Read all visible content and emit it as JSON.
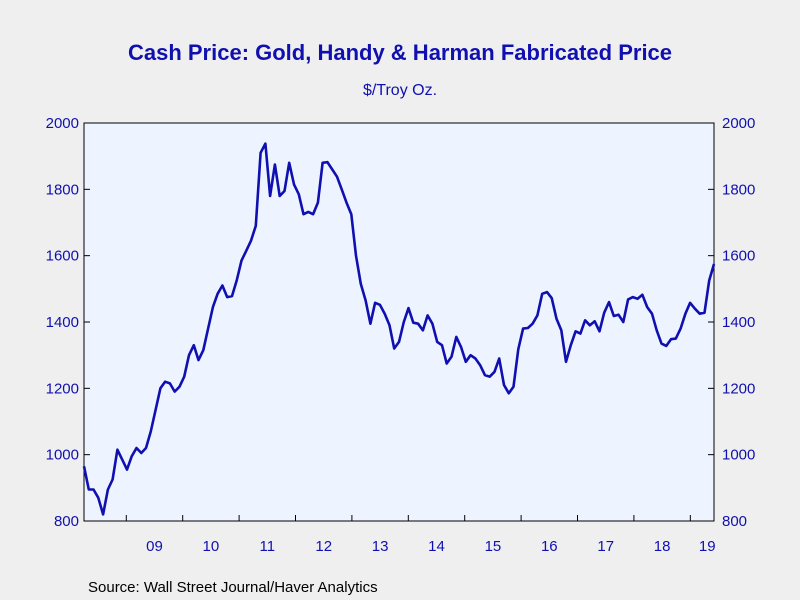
{
  "chart_data": {
    "type": "line",
    "title": "Cash Price: Gold, Handy & Harman Fabricated Price",
    "subtitle": "$/Troy Oz.",
    "source": "Source:  Wall Street Journal/Haver Analytics",
    "ylim": [
      800,
      2000
    ],
    "y_ticks": [
      800,
      1000,
      1200,
      1400,
      1600,
      1800,
      2000
    ],
    "y_tick_labels": [
      "800",
      "1000",
      "1200",
      "1400",
      "1600",
      "1800",
      "2000"
    ],
    "x_start": 2008.25,
    "x_end": 2019.42,
    "x_tick_labels": [
      "09",
      "10",
      "11",
      "12",
      "13",
      "14",
      "15",
      "16",
      "17",
      "18",
      "19"
    ],
    "grid": false,
    "colors": {
      "line": "#1010b0",
      "plot_bg": "#eef4ff",
      "axis": "#000000",
      "text": "#1010b0"
    },
    "series": [
      {
        "values": [
          965,
          895,
          895,
          870,
          820,
          895,
          925,
          1015,
          985,
          955,
          995,
          1020,
          1005,
          1020,
          1070,
          1135,
          1200,
          1220,
          1215,
          1190,
          1205,
          1235,
          1300,
          1330,
          1285,
          1315,
          1380,
          1445,
          1485,
          1510,
          1475,
          1478,
          1525,
          1585,
          1615,
          1645,
          1690,
          1910,
          1938,
          1780,
          1875,
          1780,
          1795,
          1880,
          1815,
          1785,
          1725,
          1732,
          1725,
          1760,
          1880,
          1882,
          1860,
          1838,
          1800,
          1760,
          1725,
          1600,
          1515,
          1465,
          1395,
          1458,
          1452,
          1425,
          1390,
          1320,
          1340,
          1400,
          1442,
          1398,
          1395,
          1375,
          1420,
          1395,
          1340,
          1330,
          1275,
          1295,
          1355,
          1325,
          1280,
          1300,
          1290,
          1270,
          1240,
          1235,
          1250,
          1290,
          1210,
          1185,
          1205,
          1318,
          1380,
          1382,
          1395,
          1420,
          1485,
          1490,
          1472,
          1410,
          1375,
          1280,
          1330,
          1372,
          1365,
          1405,
          1390,
          1402,
          1372,
          1428,
          1460,
          1418,
          1422,
          1400,
          1468,
          1475,
          1470,
          1482,
          1445,
          1425,
          1375,
          1335,
          1328,
          1348,
          1350,
          1380,
          1425,
          1458,
          1440,
          1425,
          1428,
          1525,
          1575
        ]
      }
    ]
  }
}
